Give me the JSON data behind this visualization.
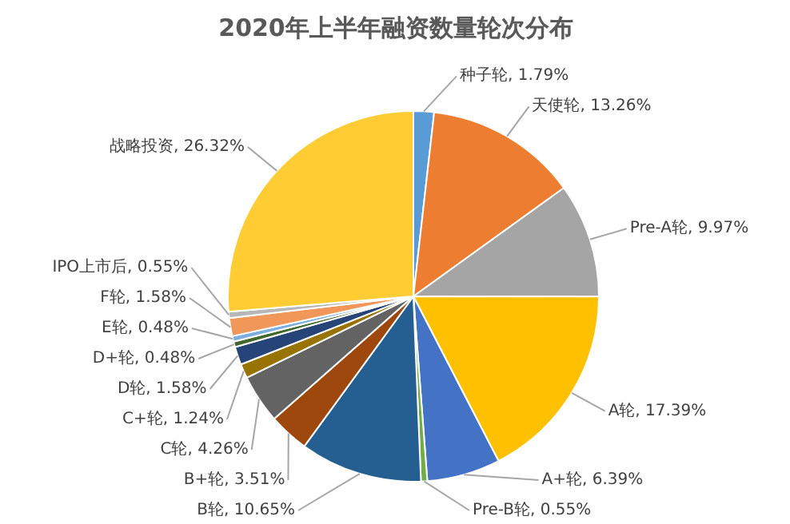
{
  "chart_data": {
    "type": "pie",
    "title": "2020年上半年融资数量轮次分布",
    "categories": [
      "种子轮",
      "天使轮",
      "Pre-A轮",
      "A轮",
      "A+轮",
      "Pre-B轮",
      "B轮",
      "B+轮",
      "C轮",
      "C+轮",
      "D轮",
      "D+轮",
      "E轮",
      "F轮",
      "IPO上市后",
      "战略投资"
    ],
    "values": [
      1.79,
      13.26,
      9.97,
      17.39,
      6.39,
      0.55,
      10.65,
      3.51,
      4.26,
      1.24,
      1.58,
      0.48,
      0.48,
      1.58,
      0.55,
      26.32
    ],
    "value_labels": [
      "1.79%",
      "13.26%",
      "9.97%",
      "17.39%",
      "6.39%",
      "0.55%",
      "10.65%",
      "3.51%",
      "4.26%",
      "1.24%",
      "1.58%",
      "0.48%",
      "0.48%",
      "1.58%",
      "0.55%",
      "26.32%"
    ],
    "colors": [
      "#5b9bd5",
      "#ed7d31",
      "#a5a5a5",
      "#ffc000",
      "#4472c4",
      "#70ad47",
      "#255e91",
      "#9e480e",
      "#636363",
      "#997300",
      "#264478",
      "#43682b",
      "#7cafdd",
      "#f1975a",
      "#b7b7b7",
      "#ffcd33"
    ]
  }
}
